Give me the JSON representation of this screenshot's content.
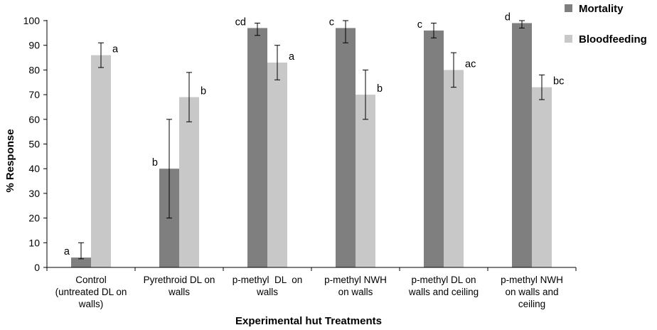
{
  "chart_data": {
    "type": "bar",
    "xlabel": "Experimental hut Treatments",
    "ylabel": "% Response",
    "ylim": [
      0,
      100
    ],
    "yticks": [
      0,
      10,
      20,
      30,
      40,
      50,
      60,
      70,
      80,
      90,
      100
    ],
    "grid": false,
    "legend_placement": "top-right",
    "categories": [
      [
        "Control",
        "(untreated DL on",
        "walls)"
      ],
      [
        "Pyrethroid DL on",
        "walls"
      ],
      [
        "p-methyl  DL  on",
        "walls"
      ],
      [
        "p-methyl NWH",
        "on walls"
      ],
      [
        "p-methyl DL on",
        "walls and ceiling"
      ],
      [
        "p-methyl NWH",
        "on walls and",
        "ceiling"
      ]
    ],
    "series": [
      {
        "name": "Mortality",
        "color": "#7f7f7f",
        "values": [
          4,
          40,
          97,
          97,
          96,
          99
        ],
        "err_low": [
          3.5,
          20,
          94,
          91,
          93,
          97
        ],
        "err_high": [
          10,
          60,
          99,
          100,
          99,
          100
        ],
        "labels": [
          "a",
          "b",
          "cd",
          "c",
          "c",
          "d"
        ]
      },
      {
        "name": "Bloodfeeding",
        "color": "#c8c8c8",
        "values": [
          86,
          69,
          83,
          70,
          80,
          73
        ],
        "err_low": [
          81,
          59,
          76,
          60,
          73,
          68
        ],
        "err_high": [
          91,
          79,
          90,
          80,
          87,
          78
        ],
        "labels": [
          "a",
          "b",
          "a",
          "b",
          "ac",
          "bc"
        ]
      }
    ]
  }
}
